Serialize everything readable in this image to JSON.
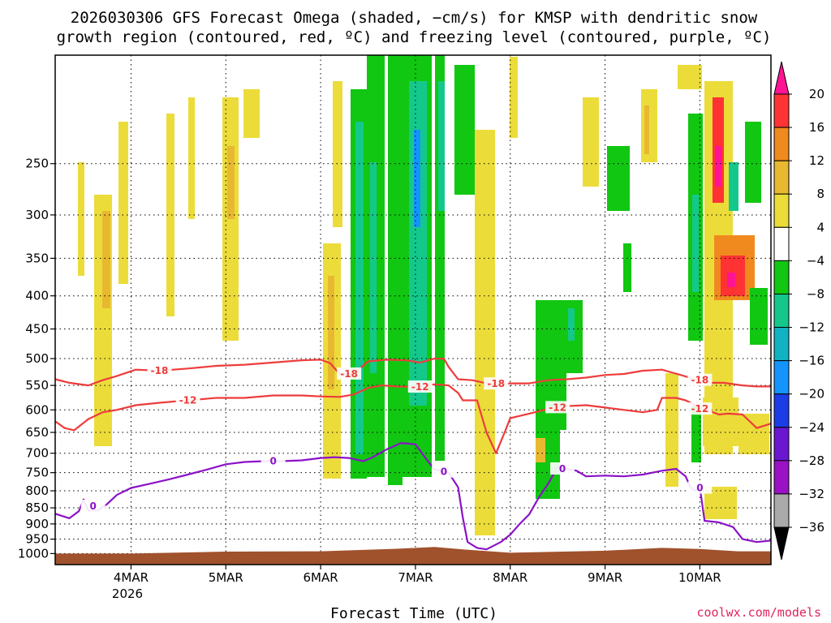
{
  "chart_data": {
    "type": "time-height cross section",
    "title_line1": "2026030306 GFS Forecast Omega (shaded, −cm/s) for KMSP with dendritic snow",
    "title_line2": "growth region (contoured, red, ºC) and freezing level (contoured, purple, ºC)",
    "xlabel": "Forecast Time (UTC)",
    "credit": "coolwx.com/models",
    "x_range_days": [
      3.2,
      10.75
    ],
    "x_ticks": [
      {
        "day": 4,
        "label": "4MAR"
      },
      {
        "day": 5,
        "label": "5MAR"
      },
      {
        "day": 6,
        "label": "6MAR"
      },
      {
        "day": 7,
        "label": "7MAR"
      },
      {
        "day": 8,
        "label": "8MAR"
      },
      {
        "day": 9,
        "label": "9MAR"
      },
      {
        "day": 10,
        "label": "10MAR"
      }
    ],
    "x_year_label": "2026",
    "y_axis": "pressure (hPa)",
    "y_range_hPa": [
      1040,
      170
    ],
    "y_ticks": [
      250,
      300,
      350,
      400,
      450,
      500,
      550,
      600,
      650,
      700,
      750,
      800,
      850,
      900,
      950,
      1000
    ],
    "colorbar": {
      "levels": [
        20,
        16,
        12,
        8,
        4,
        -4,
        -8,
        -12,
        -16,
        -20,
        -24,
        -28,
        -32,
        -36
      ],
      "labels": [
        "20",
        "16",
        "12",
        "8",
        "4",
        "−4",
        "−8",
        "−12",
        "−16",
        "−20",
        "−24",
        "−28",
        "−32",
        "−36"
      ],
      "colors": [
        "#ff1493",
        "#ff3333",
        "#f08a1e",
        "#e8b830",
        "#ecdc3a",
        "#ffffff",
        "#11c711",
        "#14c88c",
        "#11b2c2",
        "#1494ff",
        "#1b3de8",
        "#6b16d0",
        "#9b12c4",
        "#aaaaaa",
        "#000000"
      ]
    },
    "series": [
      {
        "name": "-18",
        "color": "#ee3c3c",
        "label": "-18",
        "points": [
          [
            3.2,
            538
          ],
          [
            3.35,
            545
          ],
          [
            3.55,
            550
          ],
          [
            3.7,
            540
          ],
          [
            3.85,
            532
          ],
          [
            4.05,
            520
          ],
          [
            4.3,
            522
          ],
          [
            4.6,
            518
          ],
          [
            4.9,
            513
          ],
          [
            5.2,
            511
          ],
          [
            5.5,
            507
          ],
          [
            5.8,
            503
          ],
          [
            6.0,
            502
          ],
          [
            6.1,
            508
          ],
          [
            6.2,
            528
          ],
          [
            6.35,
            528
          ],
          [
            6.5,
            505
          ],
          [
            6.7,
            502
          ],
          [
            6.9,
            503
          ],
          [
            7.05,
            507
          ],
          [
            7.2,
            500
          ],
          [
            7.3,
            500
          ],
          [
            7.35,
            515
          ],
          [
            7.45,
            538
          ],
          [
            7.6,
            540
          ],
          [
            7.8,
            548
          ],
          [
            8.0,
            546
          ],
          [
            8.2,
            546
          ],
          [
            8.4,
            540
          ],
          [
            8.6,
            538
          ],
          [
            8.8,
            535
          ],
          [
            9.0,
            530
          ],
          [
            9.2,
            528
          ],
          [
            9.4,
            522
          ],
          [
            9.6,
            520
          ],
          [
            9.7,
            525
          ],
          [
            9.8,
            530
          ],
          [
            9.95,
            538
          ],
          [
            10.1,
            545
          ],
          [
            10.25,
            545
          ],
          [
            10.45,
            550
          ],
          [
            10.6,
            552
          ],
          [
            10.75,
            552
          ]
        ]
      },
      {
        "name": "-12",
        "color": "#ee3c3c",
        "label": "-12",
        "points": [
          [
            3.2,
            625
          ],
          [
            3.3,
            640
          ],
          [
            3.4,
            645
          ],
          [
            3.55,
            620
          ],
          [
            3.7,
            605
          ],
          [
            3.85,
            600
          ],
          [
            4.05,
            590
          ],
          [
            4.3,
            585
          ],
          [
            4.6,
            580
          ],
          [
            4.9,
            575
          ],
          [
            5.2,
            575
          ],
          [
            5.5,
            570
          ],
          [
            5.8,
            570
          ],
          [
            6.0,
            572
          ],
          [
            6.2,
            573
          ],
          [
            6.35,
            568
          ],
          [
            6.5,
            555
          ],
          [
            6.65,
            550
          ],
          [
            6.8,
            552
          ],
          [
            7.0,
            553
          ],
          [
            7.2,
            548
          ],
          [
            7.35,
            550
          ],
          [
            7.45,
            565
          ],
          [
            7.5,
            580
          ],
          [
            7.65,
            580
          ],
          [
            7.75,
            650
          ],
          [
            7.85,
            700
          ],
          [
            7.95,
            645
          ],
          [
            8.0,
            618
          ],
          [
            8.2,
            608
          ],
          [
            8.4,
            598
          ],
          [
            8.6,
            592
          ],
          [
            8.8,
            590
          ],
          [
            9.0,
            595
          ],
          [
            9.2,
            600
          ],
          [
            9.4,
            605
          ],
          [
            9.55,
            600
          ],
          [
            9.6,
            575
          ],
          [
            9.75,
            575
          ],
          [
            9.85,
            580
          ],
          [
            9.95,
            590
          ],
          [
            10.05,
            598
          ],
          [
            10.2,
            610
          ],
          [
            10.3,
            608
          ],
          [
            10.45,
            610
          ],
          [
            10.6,
            640
          ],
          [
            10.75,
            630
          ]
        ]
      },
      {
        "name": "0",
        "color": "#8b12c8",
        "label": "0",
        "points": [
          [
            3.2,
            868
          ],
          [
            3.35,
            882
          ],
          [
            3.45,
            860
          ],
          [
            3.5,
            825
          ],
          [
            3.55,
            858
          ],
          [
            3.65,
            858
          ],
          [
            3.75,
            838
          ],
          [
            3.85,
            812
          ],
          [
            4.0,
            792
          ],
          [
            4.2,
            780
          ],
          [
            4.4,
            768
          ],
          [
            4.6,
            755
          ],
          [
            4.8,
            742
          ],
          [
            5.0,
            728
          ],
          [
            5.2,
            722
          ],
          [
            5.4,
            720
          ],
          [
            5.6,
            720
          ],
          [
            5.8,
            718
          ],
          [
            6.0,
            712
          ],
          [
            6.15,
            710
          ],
          [
            6.3,
            712
          ],
          [
            6.45,
            720
          ],
          [
            6.55,
            710
          ],
          [
            6.7,
            690
          ],
          [
            6.85,
            675
          ],
          [
            7.0,
            678
          ],
          [
            7.1,
            710
          ],
          [
            7.2,
            742
          ],
          [
            7.35,
            750
          ],
          [
            7.45,
            790
          ],
          [
            7.5,
            880
          ],
          [
            7.55,
            960
          ],
          [
            7.65,
            980
          ],
          [
            7.75,
            985
          ],
          [
            7.9,
            960
          ],
          [
            8.0,
            935
          ],
          [
            8.1,
            900
          ],
          [
            8.2,
            870
          ],
          [
            8.3,
            820
          ],
          [
            8.4,
            780
          ],
          [
            8.5,
            735
          ],
          [
            8.6,
            740
          ],
          [
            8.7,
            745
          ],
          [
            8.8,
            760
          ],
          [
            9.0,
            758
          ],
          [
            9.2,
            760
          ],
          [
            9.4,
            755
          ],
          [
            9.6,
            745
          ],
          [
            9.75,
            740
          ],
          [
            9.85,
            760
          ],
          [
            9.9,
            790
          ],
          [
            9.95,
            800
          ],
          [
            10.0,
            790
          ],
          [
            10.05,
            890
          ],
          [
            10.2,
            895
          ],
          [
            10.35,
            910
          ],
          [
            10.45,
            950
          ],
          [
            10.6,
            960
          ],
          [
            10.75,
            955
          ]
        ]
      }
    ]
  }
}
